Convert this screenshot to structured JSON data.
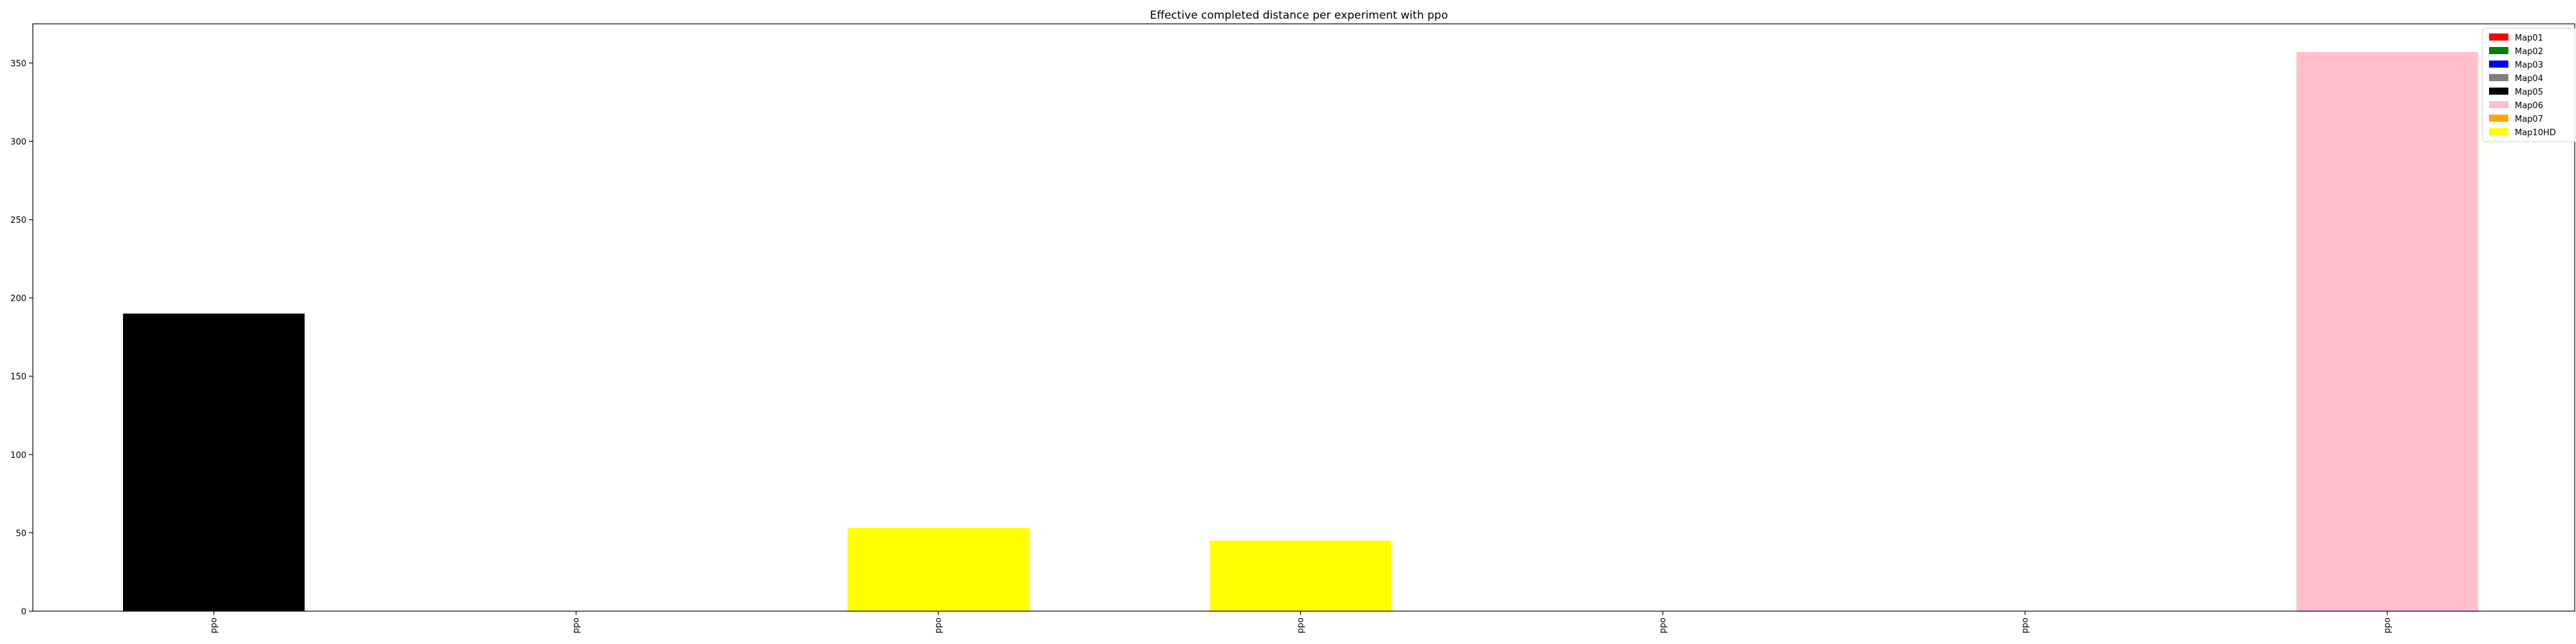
{
  "chart_data": {
    "type": "bar",
    "title": "Effective completed distance per experiment with ppo",
    "xlabel": "",
    "ylabel": "",
    "categories": [
      "ppo",
      "ppo",
      "ppo",
      "ppo",
      "ppo",
      "ppo",
      "ppo"
    ],
    "values": [
      190,
      0,
      53,
      45,
      0,
      0,
      357
    ],
    "bar_maps": [
      "Map05",
      null,
      "Map10HD",
      "Map10HD",
      null,
      null,
      "Map06"
    ],
    "ylim": [
      0,
      375
    ],
    "yticks": [
      0,
      50,
      100,
      150,
      200,
      250,
      300,
      350
    ],
    "grid": false,
    "legend_placement": "top-right",
    "legend": [
      {
        "name": "Map01",
        "color": "#ff0000"
      },
      {
        "name": "Map02",
        "color": "#008000"
      },
      {
        "name": "Map03",
        "color": "#0000ff"
      },
      {
        "name": "Map04",
        "color": "#808080"
      },
      {
        "name": "Map05",
        "color": "#000000"
      },
      {
        "name": "Map06",
        "color": "#ffc0cb"
      },
      {
        "name": "Map07",
        "color": "#ffa500"
      },
      {
        "name": "Map10HD",
        "color": "#ffff00"
      }
    ]
  }
}
